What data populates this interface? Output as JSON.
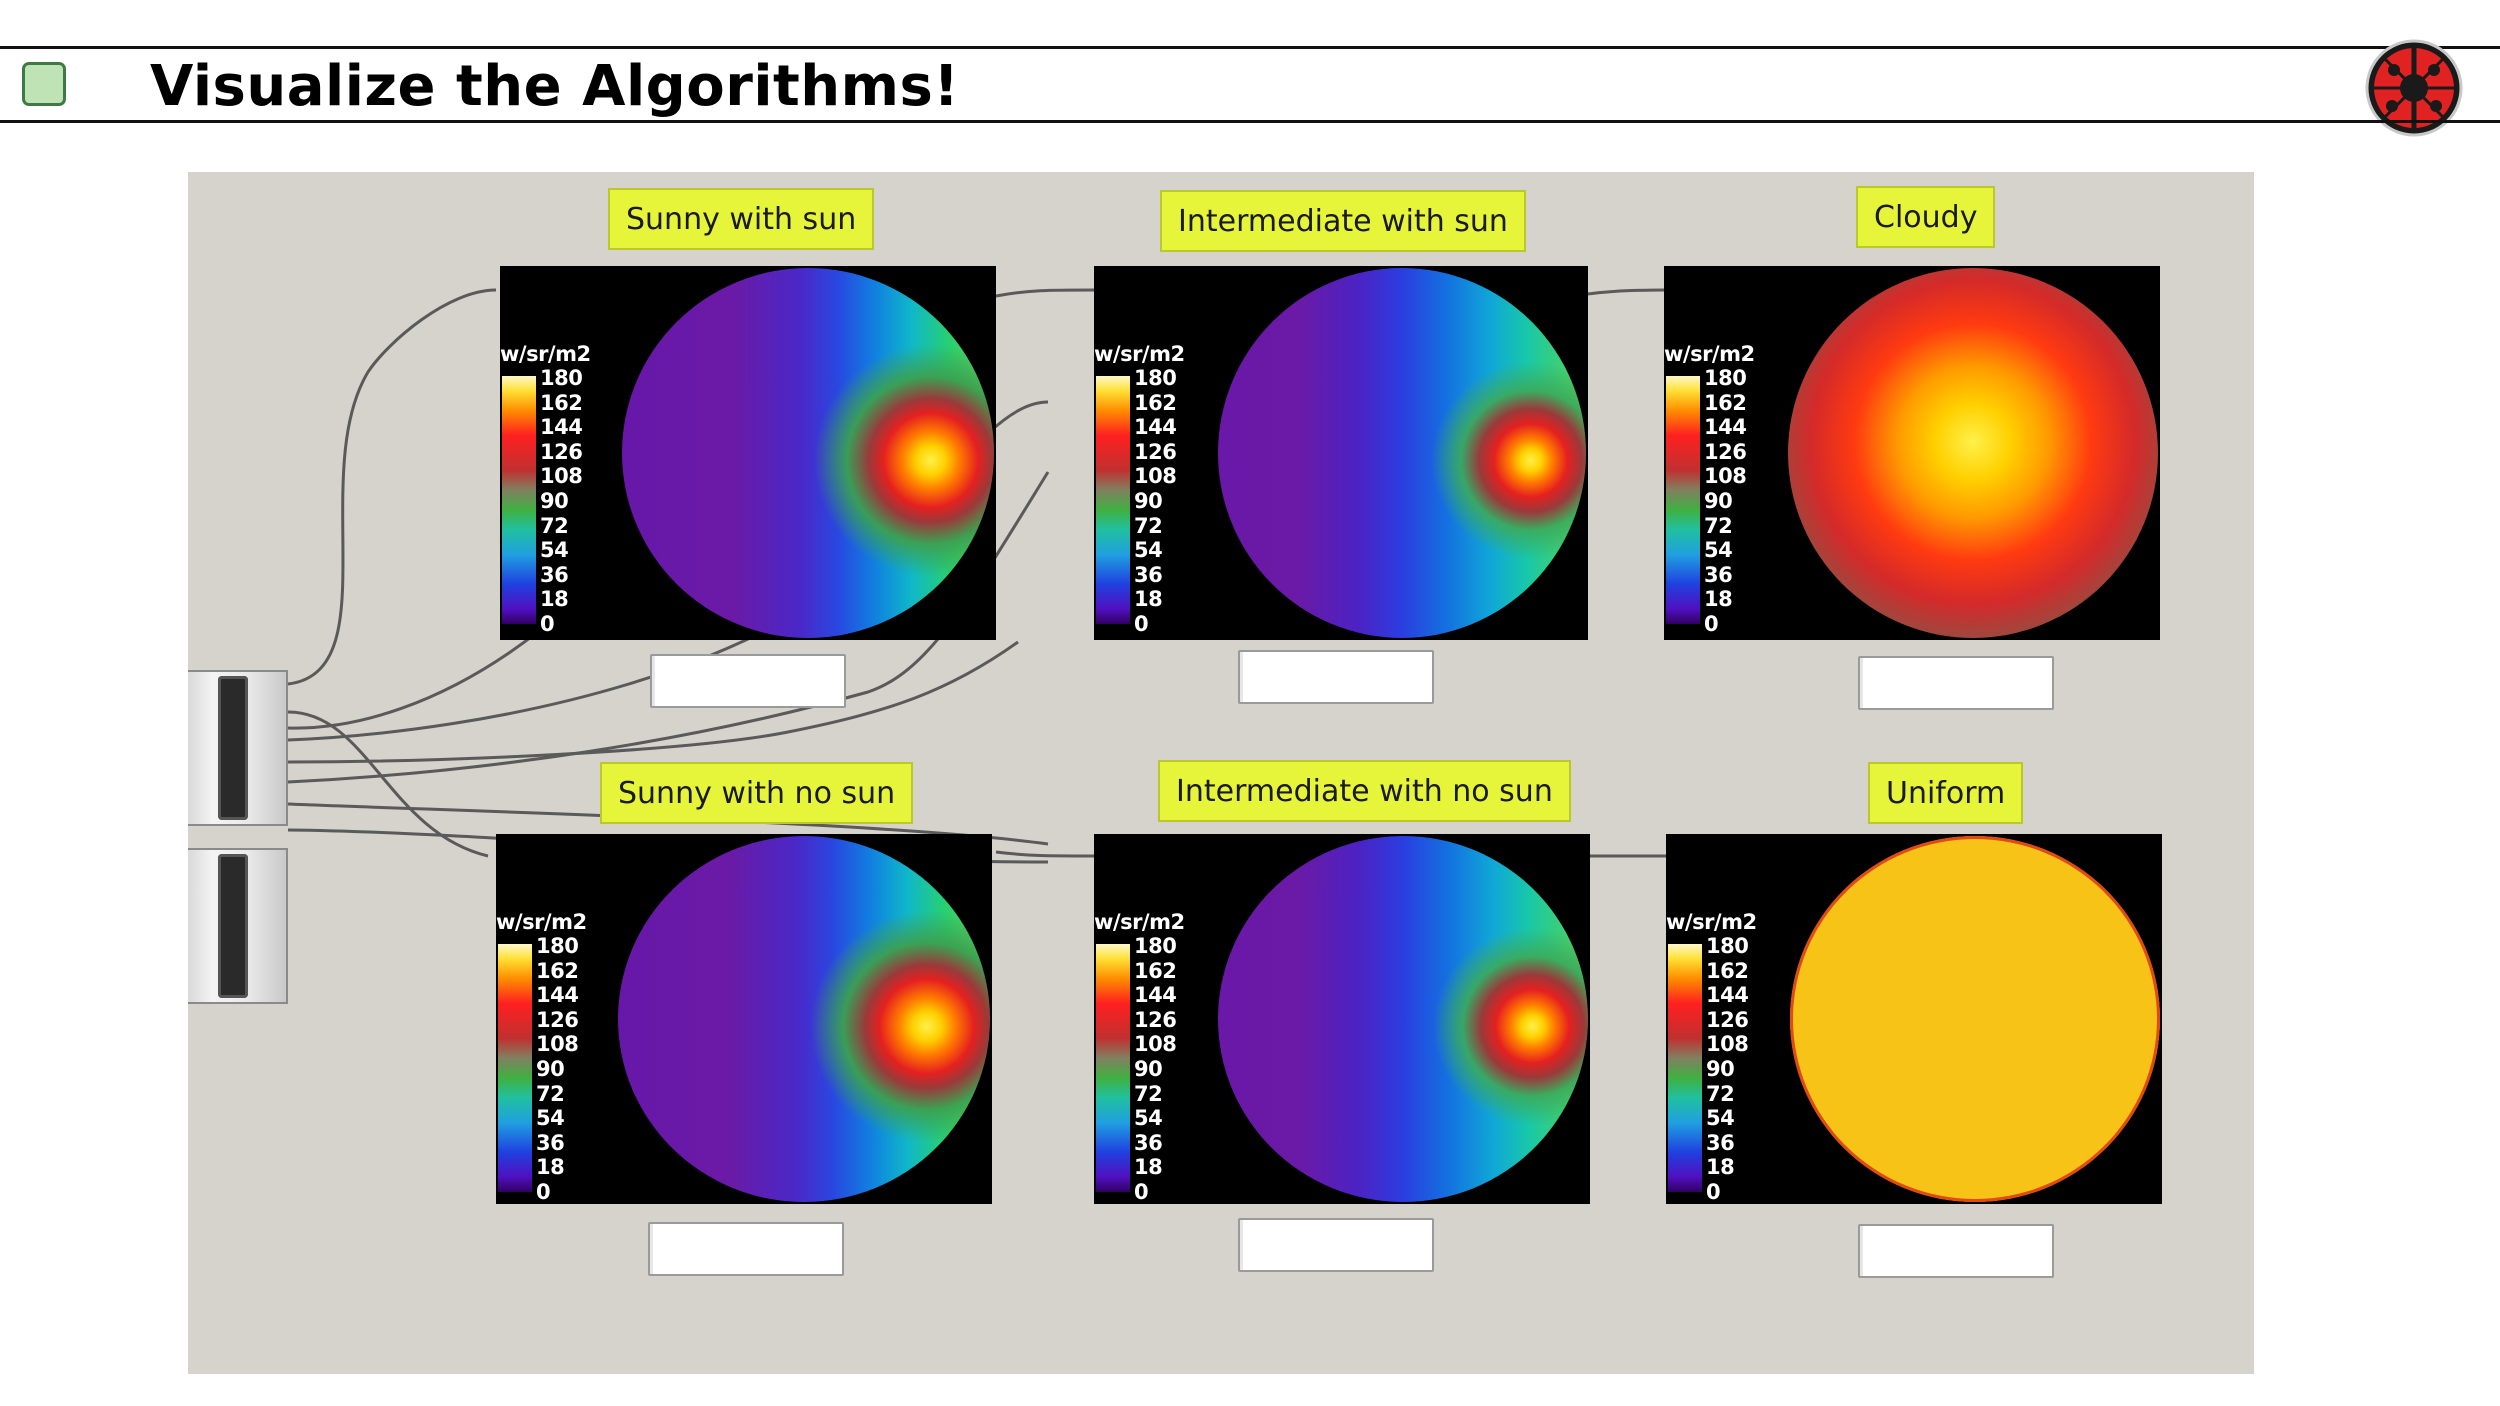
{
  "slide": {
    "title": "Visualize the Algorithms!"
  },
  "colors": {
    "label_background": "#e6f539",
    "canvas_background": "#d6d3cd",
    "bullet_fill": "#bfe3b4"
  },
  "icons": {
    "logo": "ladybug-logo-icon",
    "bullet": "green-square-bullet-icon"
  },
  "scale": {
    "unit": "w/sr/m2",
    "ticks": [
      "180",
      "162",
      "144",
      "126",
      "108",
      "90",
      "72",
      "54",
      "36",
      "18",
      "0"
    ]
  },
  "panels": [
    {
      "label": "Sunny with sun"
    },
    {
      "label": "Intermediate with sun"
    },
    {
      "label": "Cloudy"
    },
    {
      "label": "Sunny with no sun"
    },
    {
      "label": "Intermediate with no sun"
    },
    {
      "label": "Uniform"
    }
  ]
}
